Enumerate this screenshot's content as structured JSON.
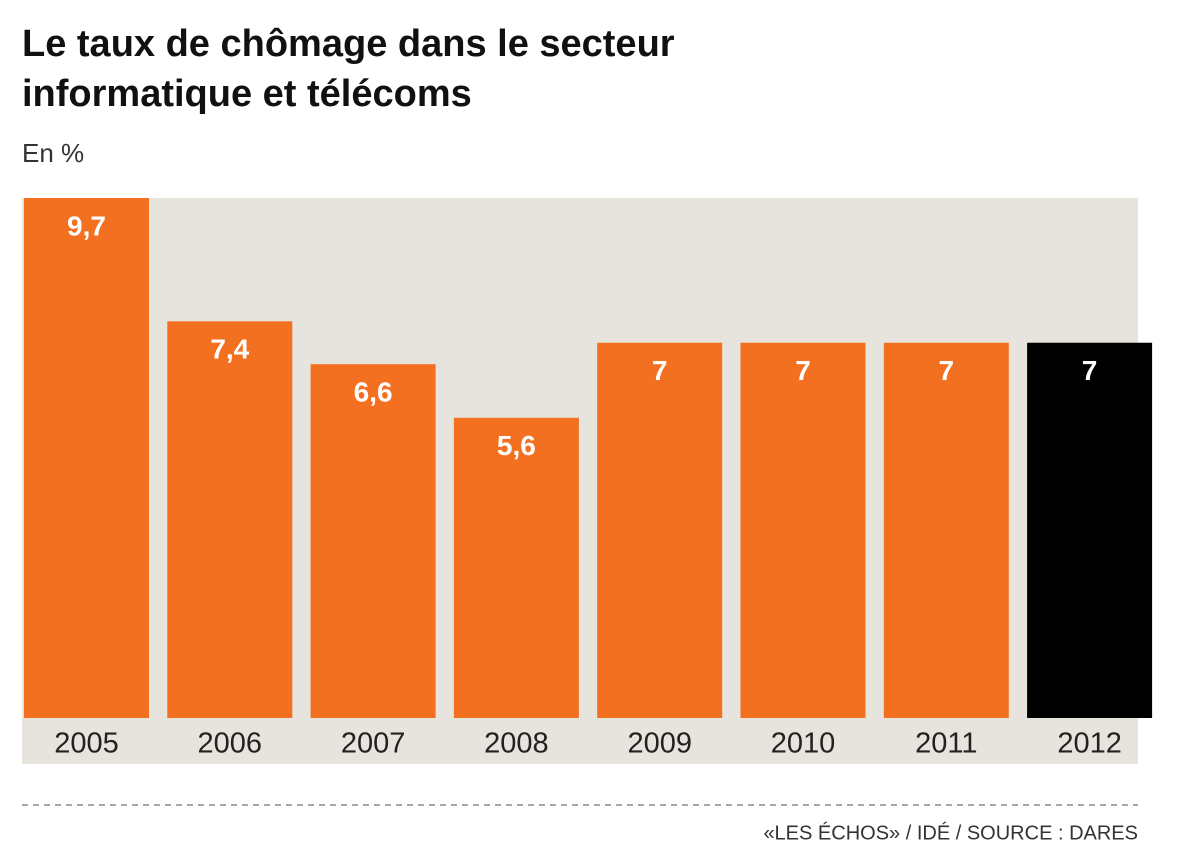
{
  "chart_data": {
    "type": "bar",
    "title": [
      "Le taux de chômage dans le secteur",
      "informatique et télécoms"
    ],
    "subtitle": "En %",
    "categories": [
      "2005",
      "2006",
      "2007",
      "2008",
      "2009",
      "2010",
      "2011",
      "2012"
    ],
    "values": [
      9.7,
      7.4,
      6.6,
      5.6,
      7,
      7,
      7,
      7
    ],
    "value_labels": [
      "9,7",
      "7,4",
      "6,6",
      "5,6",
      "7",
      "7",
      "7",
      "7"
    ],
    "colors": [
      "#f37021",
      "#f37021",
      "#f37021",
      "#f37021",
      "#f37021",
      "#f37021",
      "#f37021",
      "#000000"
    ],
    "source": "«LES ÉCHOS» / IDÉ / SOURCE : DARES"
  }
}
